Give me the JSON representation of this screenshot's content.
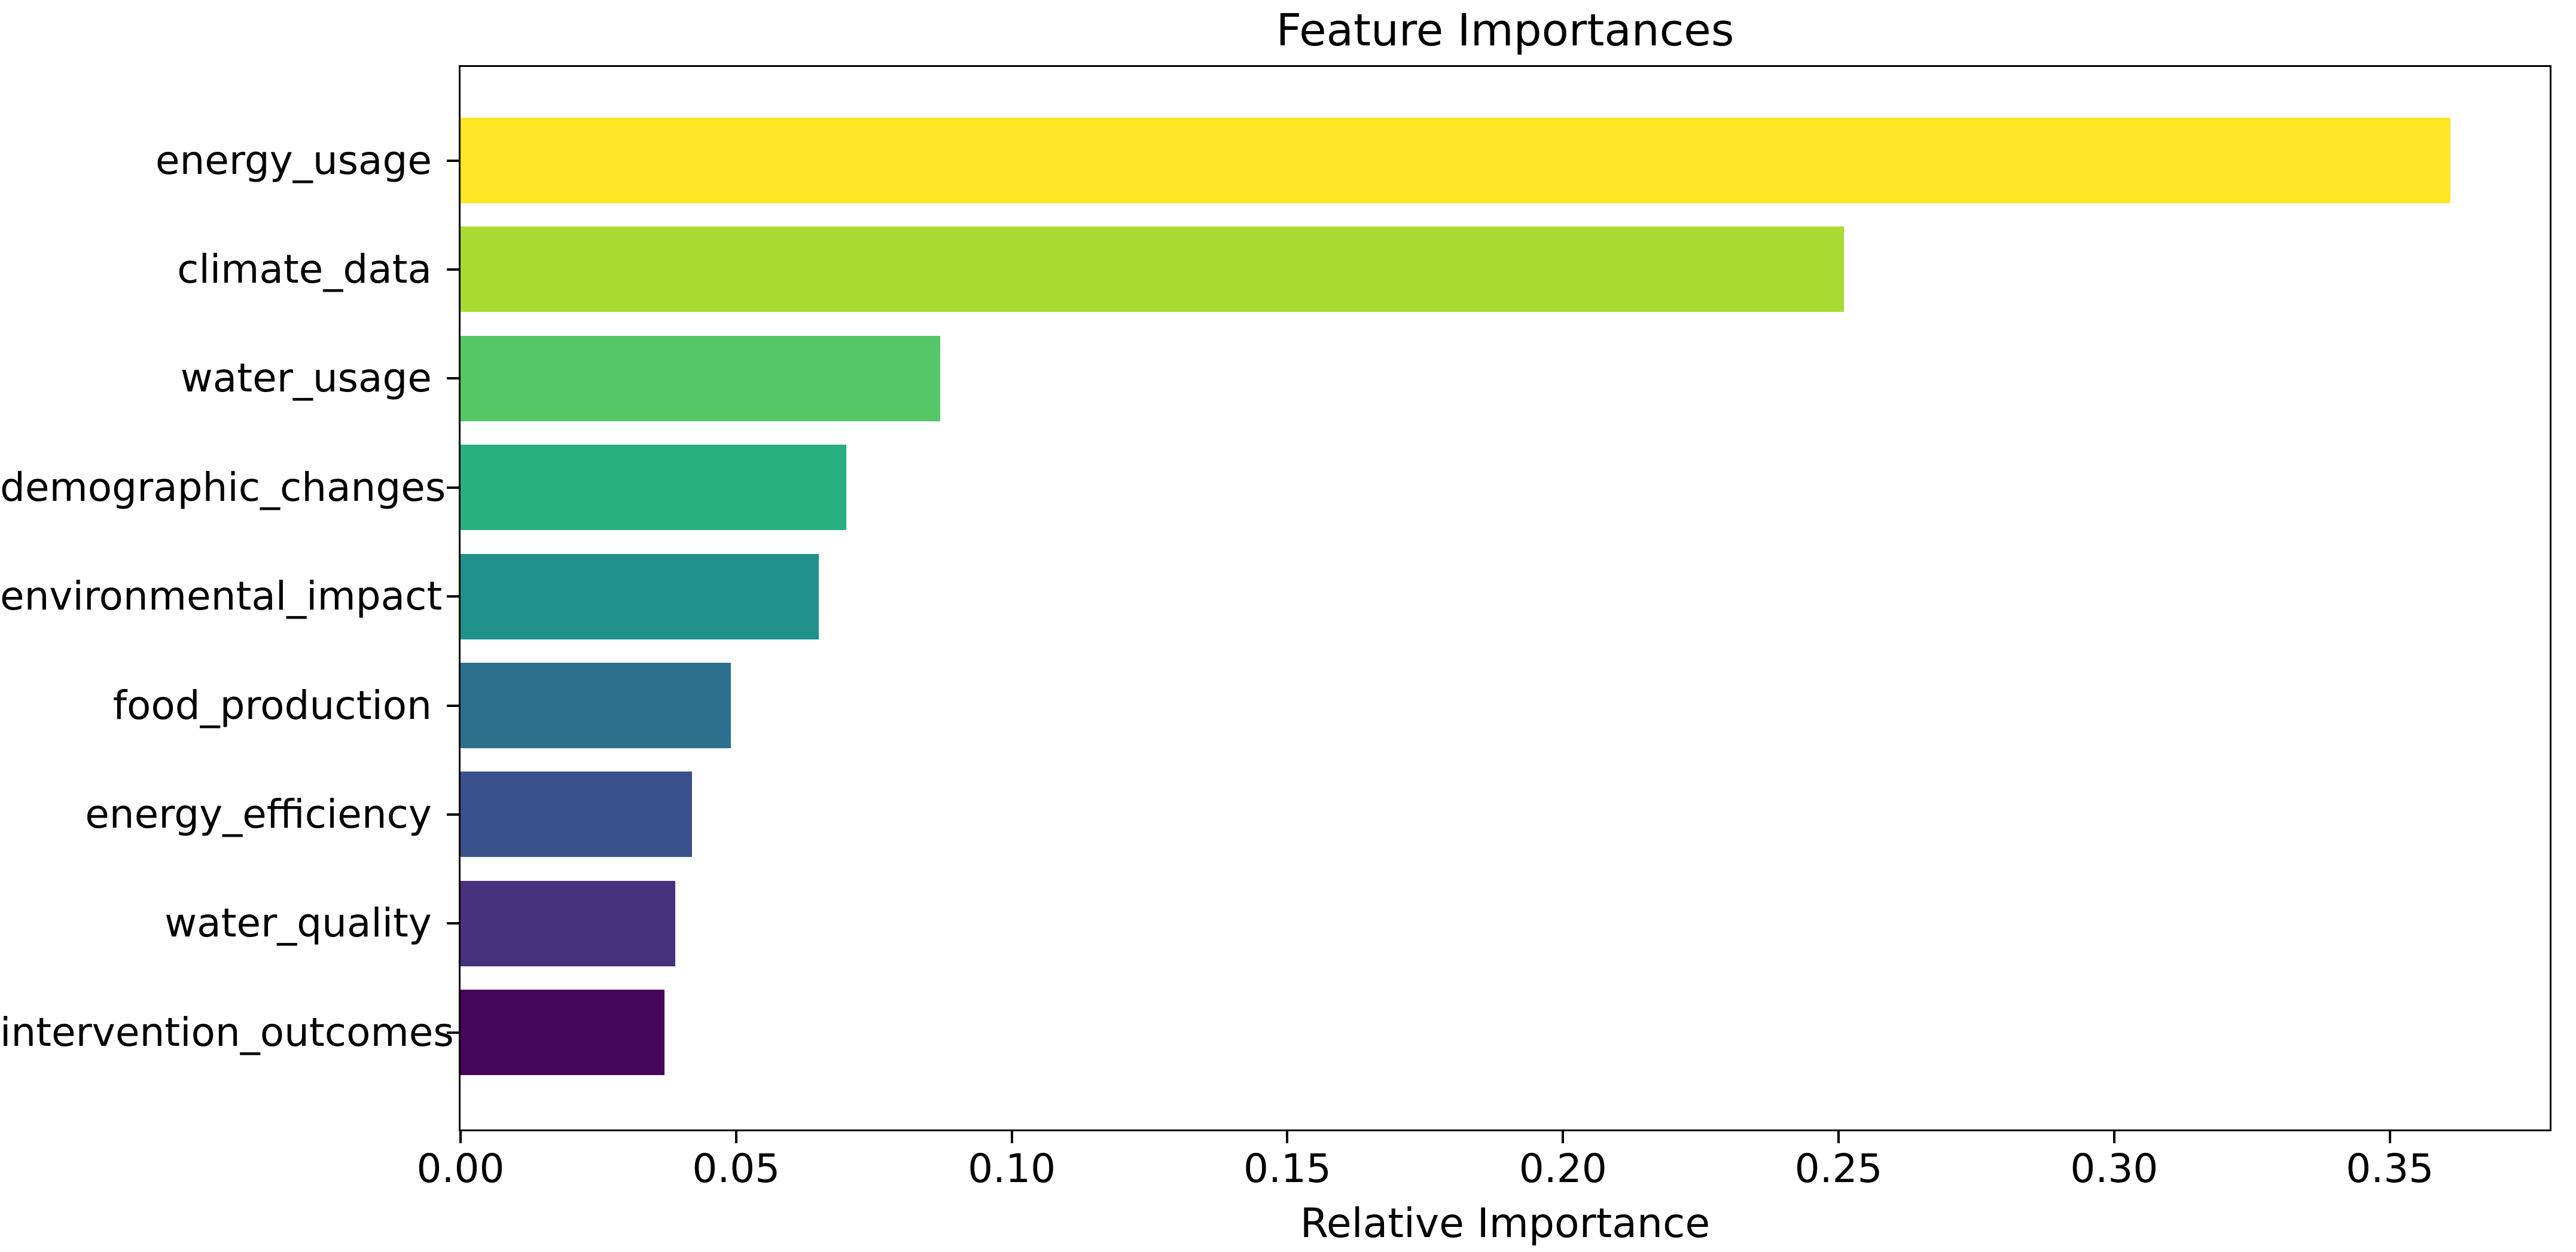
{
  "figure": {
    "title": "Feature Importances",
    "xlabel": "Relative Importance",
    "background_color": "#ffffff",
    "spine_color": "#000000",
    "text_color": "#000000"
  },
  "chart_data": {
    "type": "bar",
    "orientation": "horizontal",
    "title": "Feature Importances",
    "xlabel": "Relative Importance",
    "ylabel": "",
    "categories": [
      "energy_usage",
      "climate_data",
      "water_usage",
      "demographic_changes",
      "environmental_impact",
      "food_production",
      "energy_efficiency",
      "water_quality",
      "intervention_outcomes"
    ],
    "values": [
      0.361,
      0.251,
      0.087,
      0.07,
      0.065,
      0.049,
      0.042,
      0.039,
      0.037
    ],
    "bar_colors": [
      "#fde725",
      "#a8db34",
      "#56c667",
      "#2ab07f",
      "#21918c",
      "#2d708e",
      "#3b518b",
      "#46327e",
      "#450559"
    ],
    "colormap": "viridis",
    "xlim": [
      0,
      0.379
    ],
    "x_ticks": [
      "0.00",
      "0.05",
      "0.10",
      "0.15",
      "0.20",
      "0.25",
      "0.30",
      "0.35"
    ],
    "x_tick_values": [
      0.0,
      0.05,
      0.1,
      0.15,
      0.2,
      0.25,
      0.3,
      0.35
    ],
    "grid": false,
    "legend": false
  }
}
